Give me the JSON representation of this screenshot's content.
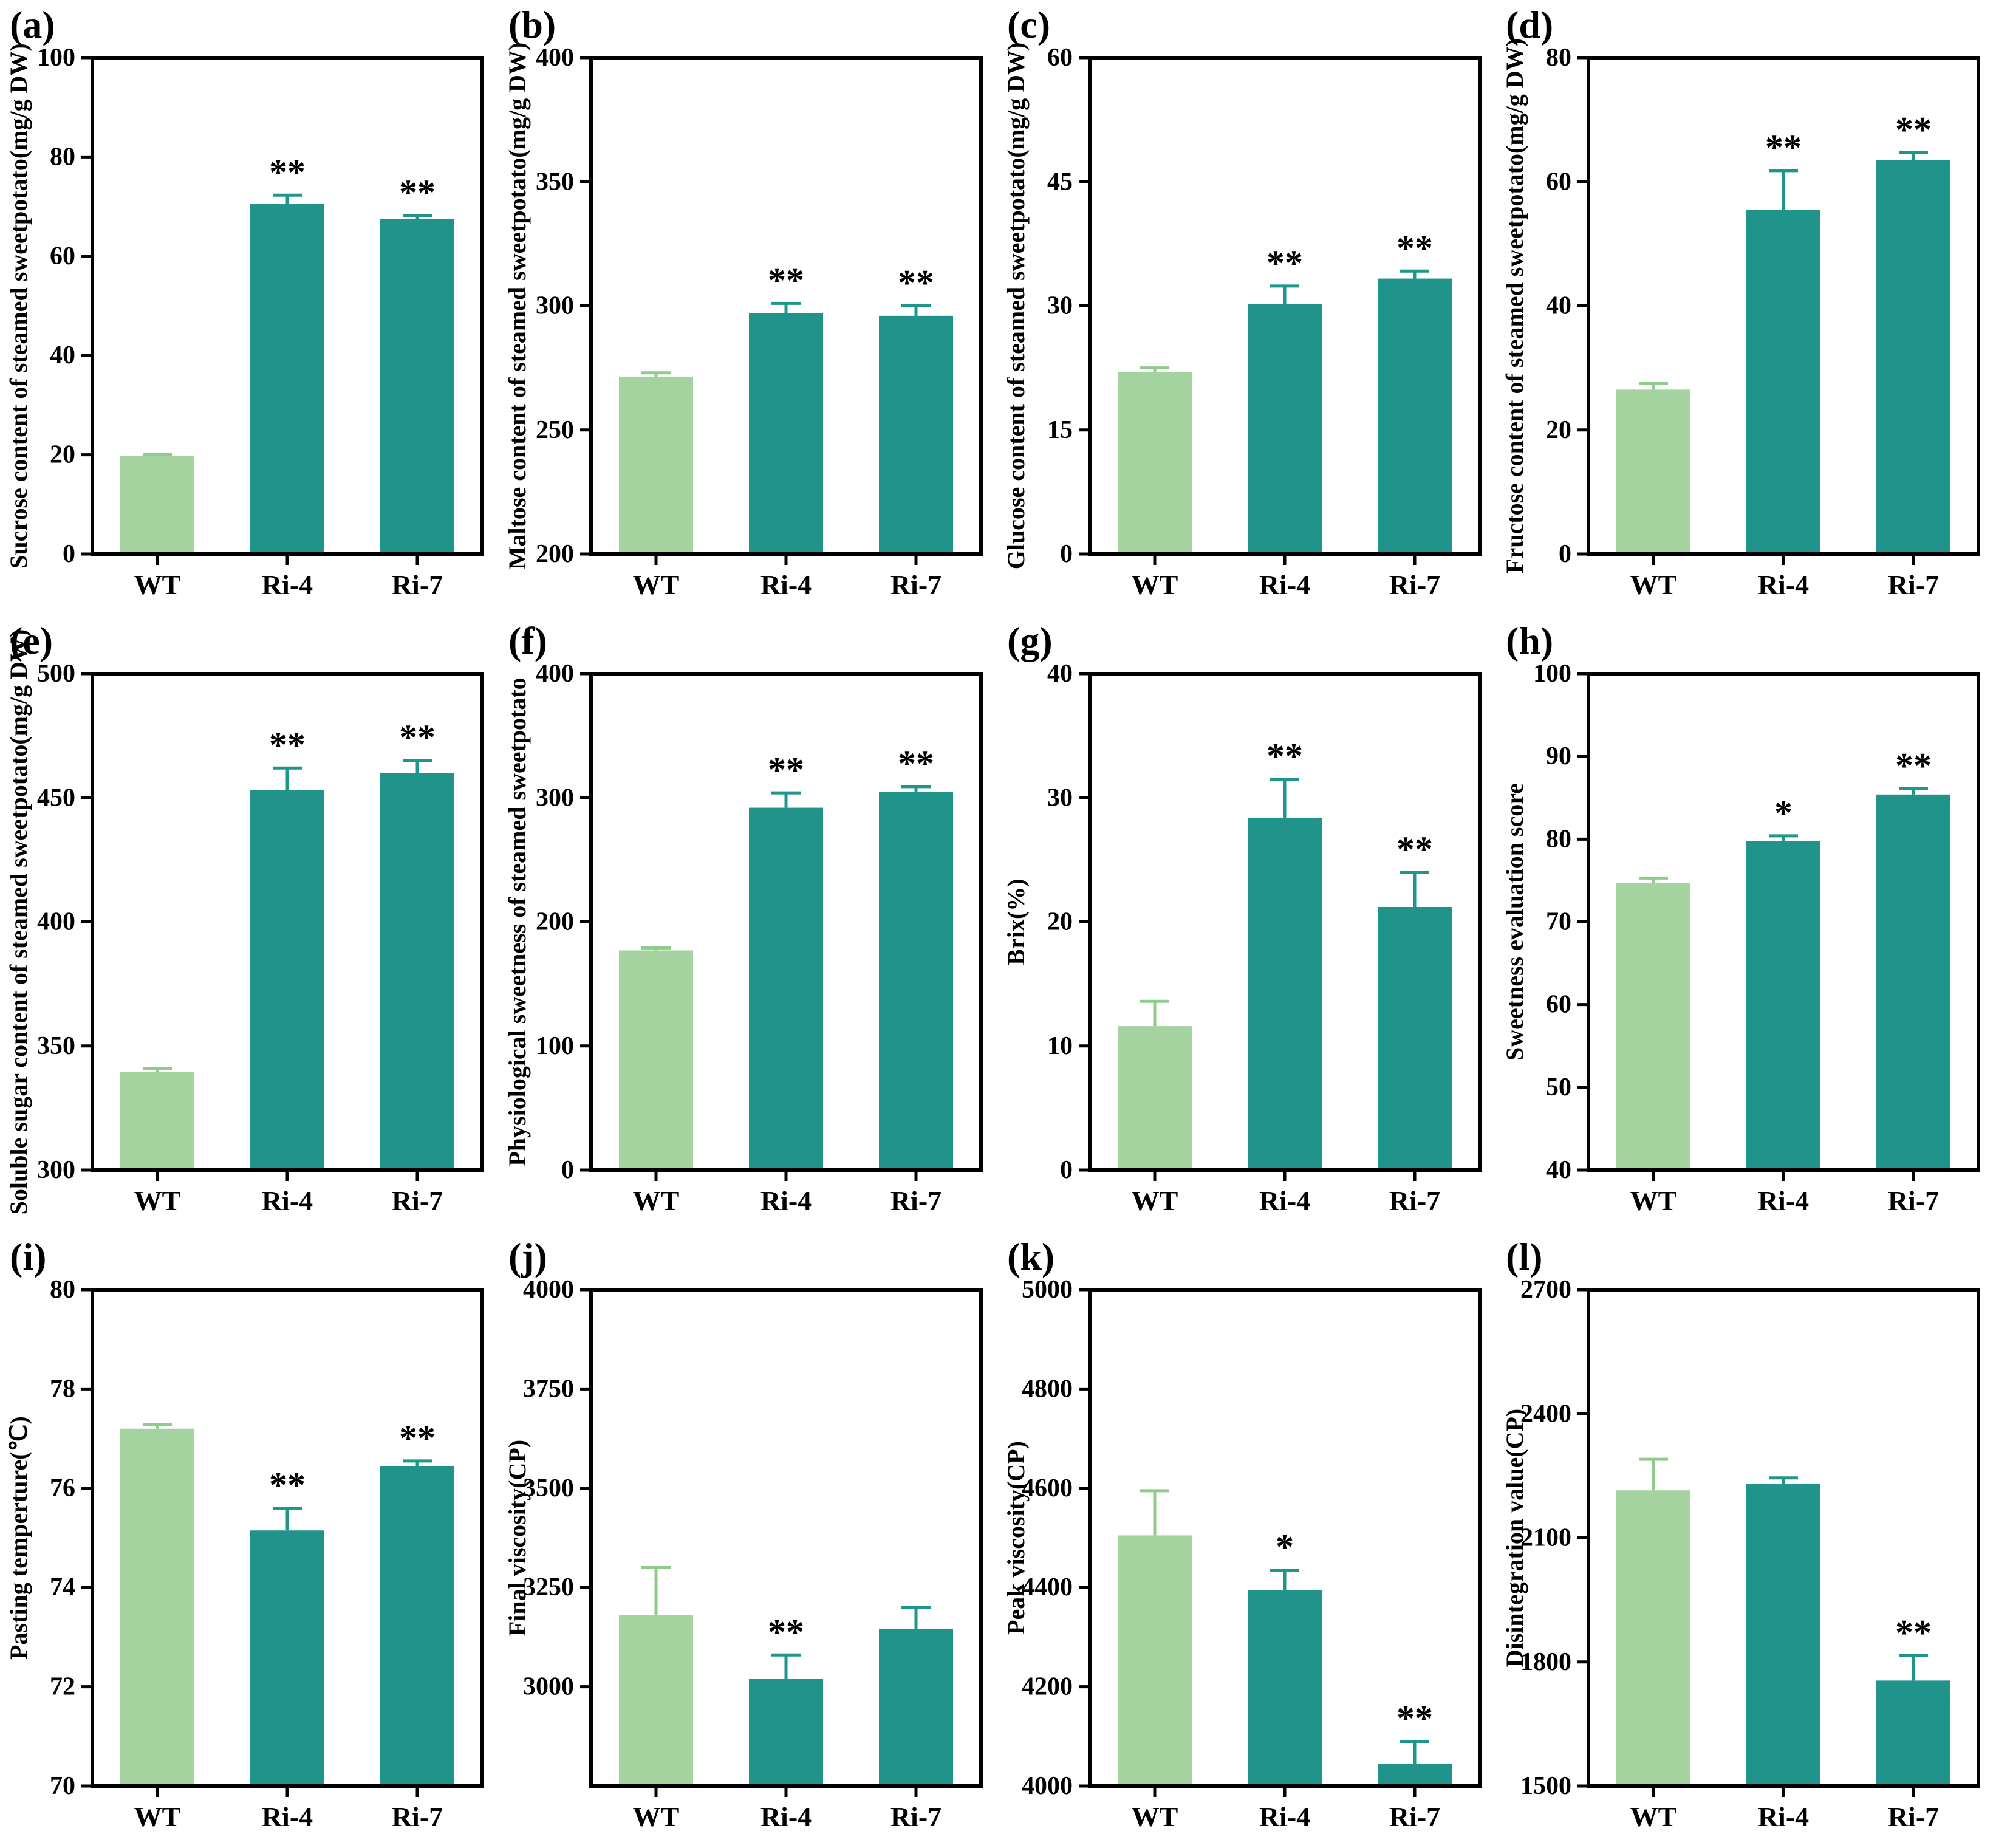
{
  "figure": {
    "categories": [
      "WT",
      "Ri-4",
      "Ri-7"
    ],
    "colors": {
      "wt_bar": "#a5d3a0",
      "mutant_bar": "#20938a",
      "wt_error": "#8fcb8b",
      "mutant_error": "#1e968c",
      "axis": "#000000",
      "sig": "#000000",
      "background": "#ffffff"
    }
  },
  "chart_data": [
    {
      "type": "bar",
      "panel_letter": "(a)",
      "title": "",
      "xlabel": "",
      "ylabel": "Sucrose content of steamed sweetpotato(mg/g DW)",
      "categories": [
        "WT",
        "Ri-4",
        "Ri-7"
      ],
      "values": [
        19.8,
        70.5,
        67.5
      ],
      "errors": [
        0.3,
        1.8,
        0.7
      ],
      "sig": [
        "",
        "**",
        "**"
      ],
      "ylim": [
        0,
        100
      ],
      "yticks": [
        0,
        20,
        40,
        60,
        80,
        100
      ],
      "grid": false,
      "legend": "none"
    },
    {
      "type": "bar",
      "panel_letter": "(b)",
      "title": "",
      "xlabel": "",
      "ylabel": "Maltose content of steamed sweetpotato(mg/g DW)",
      "categories": [
        "WT",
        "Ri-4",
        "Ri-7"
      ],
      "values": [
        271.5,
        297,
        296
      ],
      "errors": [
        1.5,
        4,
        4
      ],
      "sig": [
        "",
        "**",
        "**"
      ],
      "ylim": [
        200,
        400
      ],
      "yticks": [
        200,
        250,
        300,
        350,
        400
      ],
      "grid": false,
      "legend": "none"
    },
    {
      "type": "bar",
      "panel_letter": "(c)",
      "title": "",
      "xlabel": "",
      "ylabel": "Glucose content of steamed sweetpotato(mg/g DW)",
      "categories": [
        "WT",
        "Ri-4",
        "Ri-7"
      ],
      "values": [
        22,
        30.2,
        33.3
      ],
      "errors": [
        0.5,
        2.2,
        0.9
      ],
      "sig": [
        "",
        "**",
        "**"
      ],
      "ylim": [
        0,
        60
      ],
      "yticks": [
        0,
        15,
        30,
        45,
        60
      ],
      "grid": false,
      "legend": "none"
    },
    {
      "type": "bar",
      "panel_letter": "(d)",
      "title": "",
      "xlabel": "",
      "ylabel": "Fructose content of steamed sweetpotato(mg/g DW)",
      "categories": [
        "WT",
        "Ri-4",
        "Ri-7"
      ],
      "values": [
        26.5,
        55.5,
        63.5
      ],
      "errors": [
        1.0,
        6.3,
        1.2
      ],
      "sig": [
        "",
        "**",
        "**"
      ],
      "ylim": [
        0,
        80
      ],
      "yticks": [
        0,
        20,
        40,
        60,
        80
      ],
      "grid": false,
      "legend": "none"
    },
    {
      "type": "bar",
      "panel_letter": "(e)",
      "title": "",
      "xlabel": "",
      "ylabel": "Soluble sugar content of steamed sweetpotato(mg/g DW)",
      "categories": [
        "WT",
        "Ri-4",
        "Ri-7"
      ],
      "values": [
        339.5,
        453,
        460
      ],
      "errors": [
        1.5,
        9,
        5
      ],
      "sig": [
        "",
        "**",
        "**"
      ],
      "ylim": [
        300,
        500
      ],
      "yticks": [
        300,
        350,
        400,
        450,
        500
      ],
      "grid": false,
      "legend": "none"
    },
    {
      "type": "bar",
      "panel_letter": "(f)",
      "title": "",
      "xlabel": "",
      "ylabel": "Physiological sweetness of steamed sweetpotato",
      "categories": [
        "WT",
        "Ri-4",
        "Ri-7"
      ],
      "values": [
        177,
        292,
        305
      ],
      "errors": [
        2,
        12,
        4
      ],
      "sig": [
        "",
        "**",
        "**"
      ],
      "ylim": [
        0,
        400
      ],
      "yticks": [
        0,
        100,
        200,
        300,
        400
      ],
      "grid": false,
      "legend": "none"
    },
    {
      "type": "bar",
      "panel_letter": "(g)",
      "title": "",
      "xlabel": "",
      "ylabel": "Brix(%)",
      "categories": [
        "WT",
        "Ri-4",
        "Ri-7"
      ],
      "values": [
        11.6,
        28.4,
        21.2
      ],
      "errors": [
        2.0,
        3.1,
        2.8
      ],
      "sig": [
        "",
        "**",
        "**"
      ],
      "ylim": [
        0,
        40
      ],
      "yticks": [
        0,
        10,
        20,
        30,
        40
      ],
      "grid": false,
      "legend": "none"
    },
    {
      "type": "bar",
      "panel_letter": "(h)",
      "title": "",
      "xlabel": "",
      "ylabel": "Sweetness evaluation score",
      "categories": [
        "WT",
        "Ri-4",
        "Ri-7"
      ],
      "values": [
        74.7,
        79.8,
        85.4
      ],
      "errors": [
        0.6,
        0.6,
        0.7
      ],
      "sig": [
        "",
        "*",
        "**"
      ],
      "ylim": [
        40,
        100
      ],
      "yticks": [
        40,
        50,
        60,
        70,
        80,
        90,
        100
      ],
      "grid": false,
      "legend": "none"
    },
    {
      "type": "bar",
      "panel_letter": "(i)",
      "title": "",
      "xlabel": "",
      "ylabel": "Pasting temperture(℃)",
      "categories": [
        "WT",
        "Ri-4",
        "Ri-7"
      ],
      "values": [
        77.2,
        75.15,
        76.45
      ],
      "errors": [
        0.08,
        0.45,
        0.1
      ],
      "sig": [
        "",
        "**",
        "**"
      ],
      "ylim": [
        70,
        80
      ],
      "yticks": [
        70,
        72,
        74,
        76,
        78,
        80
      ],
      "grid": false,
      "legend": "none"
    },
    {
      "type": "bar",
      "panel_letter": "(j)",
      "title": "",
      "xlabel": "",
      "ylabel": "Final viscosity(CP)",
      "categories": [
        "WT",
        "Ri-4",
        "Ri-7"
      ],
      "values": [
        3180,
        3020,
        3145
      ],
      "errors": [
        120,
        60,
        55
      ],
      "sig": [
        "",
        "**",
        ""
      ],
      "ylim": [
        2750,
        4000
      ],
      "yticks": [
        3000,
        3250,
        3500,
        3750,
        4000
      ],
      "grid": false,
      "legend": "none"
    },
    {
      "type": "bar",
      "panel_letter": "(k)",
      "title": "",
      "xlabel": "",
      "ylabel": "Peak viscosity(CP)",
      "categories": [
        "WT",
        "Ri-4",
        "Ri-7"
      ],
      "values": [
        4505,
        4395,
        4045
      ],
      "errors": [
        90,
        40,
        45
      ],
      "sig": [
        "",
        "*",
        "**"
      ],
      "ylim": [
        4000,
        5000
      ],
      "yticks": [
        4000,
        4200,
        4400,
        4600,
        4800,
        5000
      ],
      "grid": false,
      "legend": "none"
    },
    {
      "type": "bar",
      "panel_letter": "(l)",
      "title": "",
      "xlabel": "",
      "ylabel": "Disintegration value(CP)",
      "categories": [
        "WT",
        "Ri-4",
        "Ri-7"
      ],
      "values": [
        2215,
        2230,
        1755
      ],
      "errors": [
        75,
        15,
        60
      ],
      "sig": [
        "",
        "",
        "**"
      ],
      "ylim": [
        1500,
        2700
      ],
      "yticks": [
        1500,
        1800,
        2100,
        2400,
        2700
      ],
      "grid": false,
      "legend": "none"
    }
  ]
}
